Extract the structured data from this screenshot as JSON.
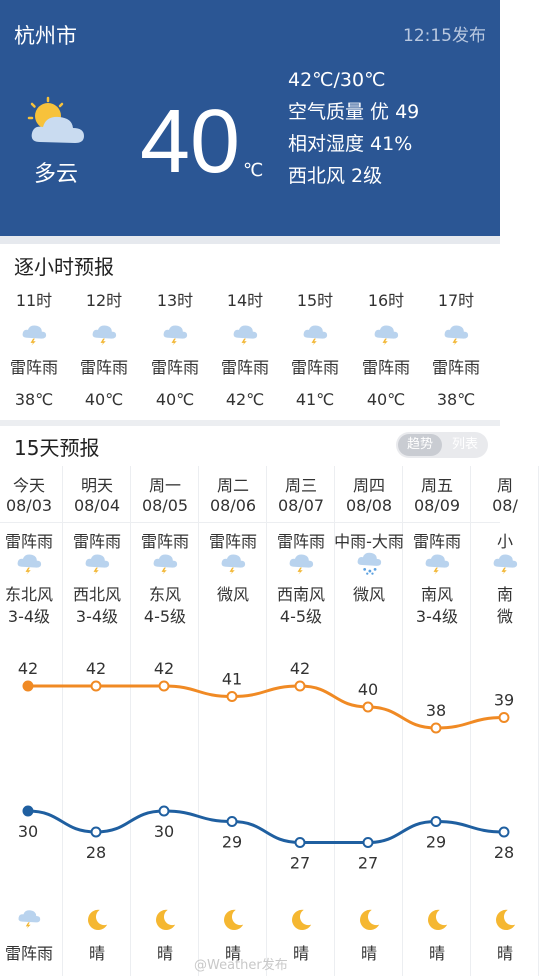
{
  "header": {
    "city": "杭州市",
    "publish_time": "12:15发布",
    "condition": "多云",
    "temperature": "40",
    "unit": "℃",
    "range": "42℃/30℃",
    "air_quality": "空气质量 优 49",
    "humidity": "相对湿度 41%",
    "wind": "西北风 2级",
    "icon": "partly-cloudy-icon"
  },
  "hourly": {
    "title": "逐小时预报",
    "items": [
      {
        "time": "11时",
        "cond": "雷阵雨",
        "temp": "38℃",
        "icon": "thunder-shower-icon"
      },
      {
        "time": "12时",
        "cond": "雷阵雨",
        "temp": "40℃",
        "icon": "thunder-shower-icon"
      },
      {
        "time": "13时",
        "cond": "雷阵雨",
        "temp": "40℃",
        "icon": "thunder-shower-icon"
      },
      {
        "time": "14时",
        "cond": "雷阵雨",
        "temp": "42℃",
        "icon": "thunder-shower-icon"
      },
      {
        "time": "15时",
        "cond": "雷阵雨",
        "temp": "41℃",
        "icon": "thunder-shower-icon"
      },
      {
        "time": "16时",
        "cond": "雷阵雨",
        "temp": "40℃",
        "icon": "thunder-shower-icon"
      },
      {
        "time": "17时",
        "cond": "雷阵雨",
        "temp": "38℃",
        "icon": "thunder-shower-icon"
      }
    ]
  },
  "daily": {
    "title": "15天预报",
    "toggle_on": "趋势",
    "toggle_off": "列表",
    "items": [
      {
        "week": "今天",
        "date": "08/03",
        "cond": "雷阵雨",
        "wind_dir": "东北风",
        "wind_lv": "3-4级",
        "high": 42,
        "low": 30,
        "night": "雷阵雨",
        "day_icon": "thunder-shower-icon",
        "night_icon": "thunder-shower-icon"
      },
      {
        "week": "明天",
        "date": "08/04",
        "cond": "雷阵雨",
        "wind_dir": "西北风",
        "wind_lv": "3-4级",
        "high": 42,
        "low": 28,
        "night": "晴",
        "day_icon": "thunder-shower-icon",
        "night_icon": "moon-icon"
      },
      {
        "week": "周一",
        "date": "08/05",
        "cond": "雷阵雨",
        "wind_dir": "东风",
        "wind_lv": "4-5级",
        "high": 42,
        "low": 30,
        "night": "晴",
        "day_icon": "thunder-shower-icon",
        "night_icon": "moon-icon"
      },
      {
        "week": "周二",
        "date": "08/06",
        "cond": "雷阵雨",
        "wind_dir": "微风",
        "wind_lv": "",
        "high": 41,
        "low": 29,
        "night": "晴",
        "day_icon": "thunder-shower-icon",
        "night_icon": "moon-icon"
      },
      {
        "week": "周三",
        "date": "08/07",
        "cond": "雷阵雨",
        "wind_dir": "西南风",
        "wind_lv": "4-5级",
        "high": 42,
        "low": 27,
        "night": "晴",
        "day_icon": "thunder-shower-icon",
        "night_icon": "moon-icon"
      },
      {
        "week": "周四",
        "date": "08/08",
        "cond": "中雨-大雨",
        "wind_dir": "微风",
        "wind_lv": "",
        "high": 40,
        "low": 27,
        "night": "晴",
        "day_icon": "rain-icon",
        "night_icon": "moon-icon"
      },
      {
        "week": "周五",
        "date": "08/09",
        "cond": "雷阵雨",
        "wind_dir": "南风",
        "wind_lv": "3-4级",
        "high": 38,
        "low": 29,
        "night": "晴",
        "day_icon": "thunder-shower-icon",
        "night_icon": "moon-icon"
      },
      {
        "week": "周",
        "date": "08/",
        "cond": "小",
        "wind_dir": "南",
        "wind_lv": "微",
        "high": 39,
        "low": 28,
        "night": "晴",
        "day_icon": "thunder-shower-icon",
        "night_icon": "moon-icon"
      }
    ]
  },
  "colors": {
    "header_bg": "#2b5694",
    "high_line": "#f08a24",
    "low_line": "#1f5fa0"
  },
  "watermark": "@Weather发布"
}
